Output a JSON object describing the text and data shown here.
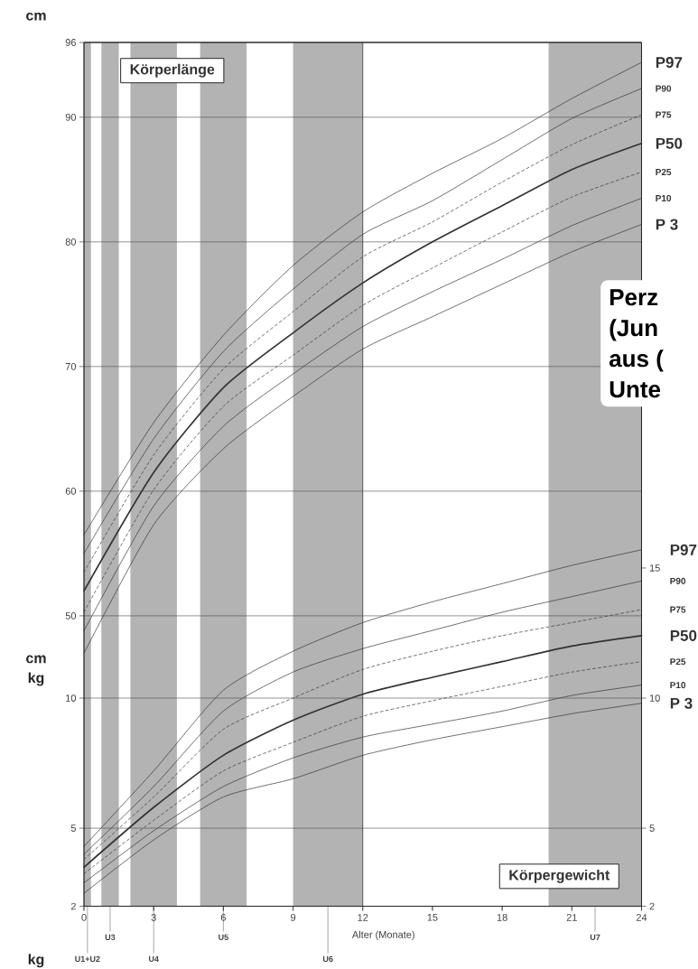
{
  "chart_data": [
    {
      "type": "line",
      "title": "Körperlänge",
      "ylabel": "cm",
      "annotations": [
        "cm",
        "Perz",
        "(Jun",
        "aus (",
        "Unte"
      ],
      "x": [
        0,
        3,
        6,
        9,
        12,
        15,
        18,
        21,
        24
      ],
      "xlim": [
        0,
        24
      ],
      "xticks": [
        0,
        3,
        6,
        9,
        12,
        15,
        18,
        21,
        24
      ],
      "ylim": [
        26.7,
        96
      ],
      "yticks": [
        50,
        60,
        70,
        80,
        90,
        96
      ],
      "tick_labels": "y",
      "grid": "y",
      "marker": "none",
      "series": [
        {
          "name": "P97",
          "color": "#333333",
          "line_style": "solid",
          "values": [
            56.5,
            65.5,
            72.5,
            78.1,
            82.4,
            85.5,
            88.3,
            91.5,
            94.4
          ]
        },
        {
          "name": "P90",
          "color": "#333333",
          "line_style": "solid",
          "values": [
            55.0,
            64.2,
            71.2,
            76.2,
            80.6,
            83.3,
            86.6,
            89.9,
            92.3
          ]
        },
        {
          "name": "P75",
          "color": "#333333",
          "line_style": "dashed",
          "values": [
            53.5,
            62.9,
            69.8,
            74.4,
            78.8,
            81.6,
            84.8,
            87.8,
            90.2
          ]
        },
        {
          "name": "P50",
          "color": "#333333",
          "line_style": "solid",
          "values": [
            52.0,
            61.5,
            68.3,
            72.7,
            76.7,
            80.0,
            82.9,
            85.8,
            87.9
          ]
        },
        {
          "name": "P25",
          "color": "#333333",
          "line_style": "dashed",
          "values": [
            50.3,
            60.1,
            66.8,
            70.9,
            74.9,
            77.9,
            80.8,
            83.6,
            85.6
          ]
        },
        {
          "name": "P10",
          "color": "#333333",
          "line_style": "solid",
          "values": [
            48.8,
            58.8,
            65.2,
            69.4,
            73.2,
            76.0,
            78.6,
            81.3,
            83.5
          ]
        },
        {
          "name": "P 3",
          "color": "#333333",
          "line_style": "solid",
          "values": [
            47.0,
            57.3,
            63.4,
            67.6,
            71.4,
            74.0,
            76.6,
            79.2,
            81.4
          ]
        }
      ]
    },
    {
      "type": "line",
      "title": "Körpergewicht",
      "xlabel": "Alter (Monate)",
      "ylabel": "kg",
      "annotations": [
        "kg"
      ],
      "x": [
        0,
        3,
        6,
        9,
        12,
        15,
        18,
        21,
        24
      ],
      "xlim": [
        0,
        24
      ],
      "xticks": [
        0,
        3,
        6,
        9,
        12,
        15,
        18,
        21,
        24
      ],
      "ylim": [
        2,
        35.2
      ],
      "yticks": [
        2,
        5,
        10
      ],
      "y2lim": [
        2,
        35.2
      ],
      "y2ticks": [
        2,
        5,
        10,
        15
      ],
      "grid": "y",
      "marker": "none",
      "bands": [
        {
          "axis": "x",
          "from": 0,
          "to": 0.3,
          "label": "U1+U2",
          "color": "#b3b3b3"
        },
        {
          "axis": "x",
          "from": 0.75,
          "to": 1.5,
          "label": "U3",
          "color": "#b3b3b3"
        },
        {
          "axis": "x",
          "from": 2,
          "to": 4,
          "label": "U4",
          "color": "#b3b3b3"
        },
        {
          "axis": "x",
          "from": 5,
          "to": 7,
          "label": "U5",
          "color": "#b3b3b3"
        },
        {
          "axis": "x",
          "from": 9,
          "to": 12,
          "label": "U6",
          "color": "#b3b3b3"
        },
        {
          "axis": "x",
          "from": 20,
          "to": 24,
          "label": "U7",
          "color": "#b3b3b3"
        }
      ],
      "ref_lines": [
        {
          "axis": "x",
          "value": 12,
          "color": "#333333"
        }
      ],
      "series": [
        {
          "name": "P97",
          "color": "#333333",
          "line_style": "solid",
          "values": [
            4.3,
            7.2,
            10.3,
            11.8,
            12.9,
            13.7,
            14.4,
            15.1,
            15.7
          ]
        },
        {
          "name": "P90",
          "color": "#333333",
          "line_style": "solid",
          "values": [
            4.0,
            6.6,
            9.5,
            11.0,
            11.9,
            12.6,
            13.3,
            13.9,
            14.5
          ]
        },
        {
          "name": "P75",
          "color": "#333333",
          "line_style": "dashed",
          "values": [
            3.8,
            6.2,
            8.8,
            10.0,
            11.1,
            11.8,
            12.4,
            12.9,
            13.4
          ]
        },
        {
          "name": "P50",
          "color": "#333333",
          "line_style": "solid",
          "values": [
            3.5,
            5.8,
            7.8,
            9.15,
            10.15,
            10.8,
            11.4,
            12.0,
            12.4
          ]
        },
        {
          "name": "P25",
          "color": "#333333",
          "line_style": "dashed",
          "values": [
            3.25,
            5.3,
            7.2,
            8.3,
            9.3,
            9.9,
            10.45,
            11.0,
            11.4
          ]
        },
        {
          "name": "P10",
          "color": "#333333",
          "line_style": "solid",
          "values": [
            2.9,
            4.9,
            6.6,
            7.7,
            8.5,
            9.0,
            9.5,
            10.1,
            10.5
          ]
        },
        {
          "name": "P 3",
          "color": "#333333",
          "line_style": "solid",
          "values": [
            2.5,
            4.55,
            6.2,
            6.9,
            7.8,
            8.4,
            8.9,
            9.4,
            9.8
          ]
        }
      ]
    }
  ]
}
